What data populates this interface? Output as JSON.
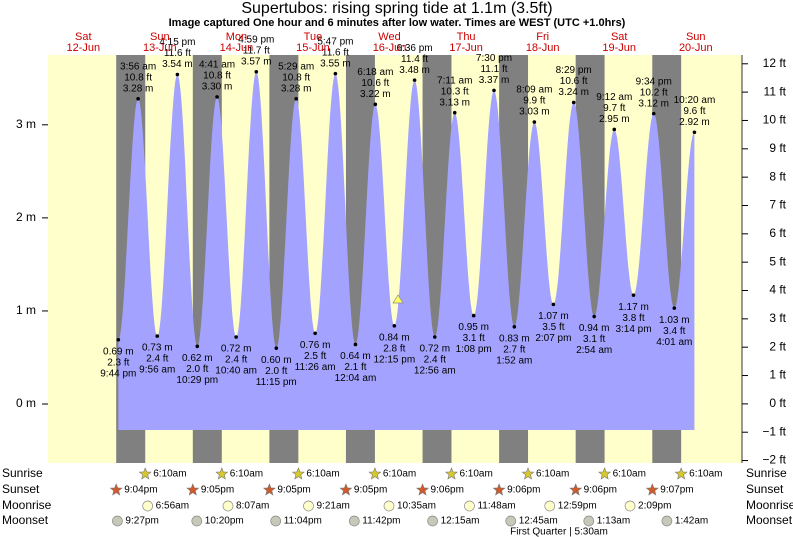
{
  "chart_data": {
    "type": "area",
    "title": "Supertubos: rising  spring tide at 1.1m (3.5ft)",
    "subtitle": "Image captured One hour and 6 minutes after low water. Times are WEST (UTC +1.0hrs)",
    "color": "#a3a3ff",
    "ylim": [
      -0.58,
      3.75
    ],
    "yticks": [
      {
        "value": 0,
        "label": "0 m"
      },
      {
        "value": 1,
        "label": "1 m"
      },
      {
        "value": 2,
        "label": "2 m"
      },
      {
        "value": 3,
        "label": "3 m"
      }
    ],
    "y2lim": [
      -1.91,
      12.31
    ],
    "y2ticks": [
      {
        "value": -2,
        "label": "−2 ft"
      },
      {
        "value": -1,
        "label": "−1 ft"
      },
      {
        "value": 0,
        "label": "0 ft"
      },
      {
        "value": 1,
        "label": "1 ft"
      },
      {
        "value": 2,
        "label": "2 ft"
      },
      {
        "value": 3,
        "label": "3 ft"
      },
      {
        "value": 4,
        "label": "4 ft"
      },
      {
        "value": 5,
        "label": "5 ft"
      },
      {
        "value": 6,
        "label": "6 ft"
      },
      {
        "value": 7,
        "label": "7 ft"
      },
      {
        "value": 8,
        "label": "8 ft"
      },
      {
        "value": 9,
        "label": "9 ft"
      },
      {
        "value": 10,
        "label": "10 ft"
      },
      {
        "value": 11,
        "label": "11 ft"
      },
      {
        "value": 12,
        "label": "12 ft"
      }
    ],
    "extremes": {
      "times": [
        "9:44 pm",
        "3:56 am",
        "9:56 am",
        "4:15 pm",
        "10:29 pm",
        "4:41 am",
        "10:40 am",
        "4:59 pm",
        "11:15 pm",
        "5:29 am",
        "11:26 am",
        "5:47 pm",
        "12:04 am",
        "6:18 am",
        "12:15 pm",
        "6:36 pm",
        "12:56 am",
        "7:11 am",
        "1:08 pm",
        "7:30 pm",
        "1:52 am",
        "8:09 am",
        "2:07 pm",
        "8:29 pm",
        "2:54 am",
        "9:12 am",
        "3:14 pm",
        "9:34 pm",
        "4:01 am",
        "10:20 am"
      ],
      "values": [
        0.69,
        3.28,
        0.73,
        3.54,
        0.62,
        3.3,
        0.72,
        3.57,
        0.6,
        3.28,
        0.76,
        3.55,
        0.64,
        3.22,
        0.84,
        3.48,
        0.72,
        3.13,
        0.95,
        3.37,
        0.83,
        3.03,
        1.07,
        3.24,
        0.94,
        2.95,
        1.17,
        3.12,
        1.03,
        2.92
      ],
      "value_labels": [
        "0.69 m",
        "3.28 m",
        "0.73 m",
        "3.54 m",
        "0.62 m",
        "3.30 m",
        "0.72 m",
        "3.57 m",
        "0.60 m",
        "3.28 m",
        "0.76 m",
        "3.55 m",
        "0.64 m",
        "3.22 m",
        "0.84 m",
        "3.48 m",
        "0.72 m",
        "3.13 m",
        "0.95 m",
        "3.37 m",
        "0.83 m",
        "3.03 m",
        "1.07 m",
        "3.24 m",
        "0.94 m",
        "2.95 m",
        "1.17 m",
        "3.12 m",
        "1.03 m",
        "2.92 m"
      ],
      "ft_labels": [
        "2.3 ft",
        "10.8 ft",
        "2.4 ft",
        "11.6 ft",
        "2.0 ft",
        "10.8 ft",
        "2.4 ft",
        "11.7 ft",
        "2.0 ft",
        "10.8 ft",
        "2.5 ft",
        "11.6 ft",
        "2.1 ft",
        "10.6 ft",
        "2.8 ft",
        "11.4 ft",
        "2.4 ft",
        "10.3 ft",
        "3.1 ft",
        "11.1 ft",
        "2.7 ft",
        "9.9 ft",
        "3.5 ft",
        "10.6 ft",
        "3.1 ft",
        "9.7 ft",
        "3.8 ft",
        "10.2 ft",
        "3.4 ft",
        "9.6 ft"
      ]
    },
    "row_labels": [
      "Sunrise",
      "Sunset",
      "Moonrise",
      "Moonset"
    ],
    "days": [
      {
        "name": "Sat",
        "date": "12-Jun",
        "sunrise": null,
        "sunset": "9:04pm",
        "moonrise": null,
        "moonset": "9:27pm"
      },
      {
        "name": "Sun",
        "date": "13-Jun",
        "sunrise": "6:10am",
        "sunset": "9:05pm",
        "moonrise": "6:56am",
        "moonset": "10:20pm"
      },
      {
        "name": "Mon",
        "date": "14-Jun",
        "sunrise": "6:10am",
        "sunset": "9:05pm",
        "moonrise": "8:07am",
        "moonset": "11:04pm"
      },
      {
        "name": "Tue",
        "date": "15-Jun",
        "sunrise": "6:10am",
        "sunset": "9:05pm",
        "moonrise": "9:21am",
        "moonset": "11:42pm"
      },
      {
        "name": "Wed",
        "date": "16-Jun",
        "sunrise": "6:10am",
        "sunset": "9:06pm",
        "moonrise": "10:35am",
        "moonset": null
      },
      {
        "name": "Thu",
        "date": "17-Jun",
        "sunrise": "6:10am",
        "sunset": "9:06pm",
        "moonrise": "11:48am",
        "moonset": "12:15am"
      },
      {
        "name": "Fri",
        "date": "18-Jun",
        "sunrise": "6:10am",
        "sunset": "9:06pm",
        "moonrise": "12:59pm",
        "moonset": "12:45am"
      },
      {
        "name": "Sat",
        "date": "19-Jun",
        "sunrise": "6:10am",
        "sunset": "9:07pm",
        "moonrise": "2:09pm",
        "moonset": "1:13am"
      },
      {
        "name": "Sun",
        "date": "20-Jun",
        "sunrise": "6:10am",
        "sunset": null,
        "moonrise": null,
        "moonset": "1:42am"
      }
    ],
    "moon_phase": "First Quarter | 5:30am"
  }
}
